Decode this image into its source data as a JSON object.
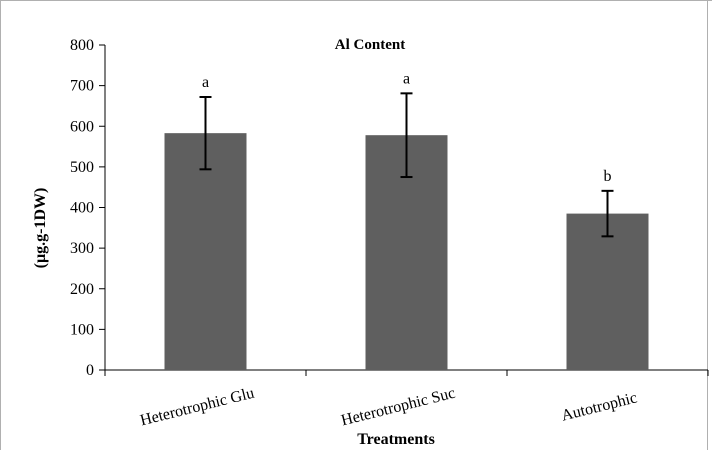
{
  "chart_data": {
    "type": "bar",
    "title": "Al Content",
    "xlabel": "Treatments",
    "ylabel": "(µg.g-1DW)",
    "categories": [
      "Heterotrophic Glu",
      "Heterotrophic Suc",
      "Autotrophic"
    ],
    "values": [
      583,
      578,
      385
    ],
    "error": [
      89,
      103,
      56
    ],
    "significance_letters": [
      "a",
      "a",
      "b"
    ],
    "ylim": [
      0,
      800
    ],
    "yticks": [
      0,
      100,
      200,
      300,
      400,
      500,
      600,
      700,
      800
    ],
    "grid": false,
    "legend": "none",
    "bar_color": "#5f5f5f"
  }
}
